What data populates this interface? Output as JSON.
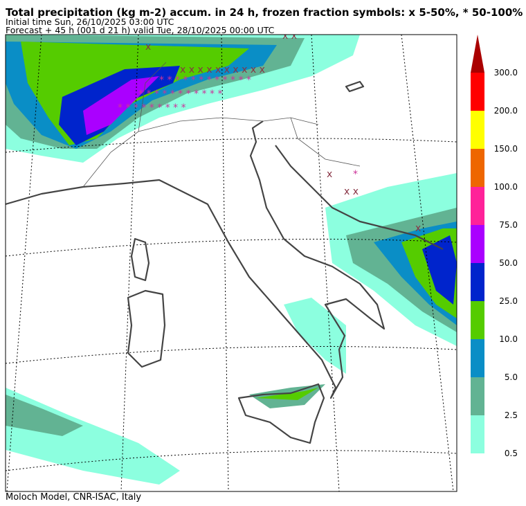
{
  "header": {
    "title": "Total precipitation (kg m-2) accum. in 24 h, frozen fraction symbols: x 5-50%, * 50-100%",
    "initial_time": "Initial time  Sun, 26/10/2025  03:00 UTC",
    "forecast": "Forecast  +  45 h  (001 d 21 h)  valid Tue, 28/10/2025 00:00 UTC"
  },
  "colorbar": {
    "labels": [
      "0.5",
      "2.5",
      "5.0",
      "10.0",
      "25.0",
      "50.0",
      "75.0",
      "100.0",
      "150.0",
      "200.0",
      "300.0"
    ],
    "colors": [
      "#8cffdf",
      "#62b393",
      "#0a8ec6",
      "#55cc00",
      "#0024cc",
      "#aa00ff",
      "#ff2299",
      "#ee6600",
      "#ffff00",
      "#ff0000",
      "#aa0000"
    ]
  },
  "footer": "Moloch Model, CNR-ISAC, Italy"
}
